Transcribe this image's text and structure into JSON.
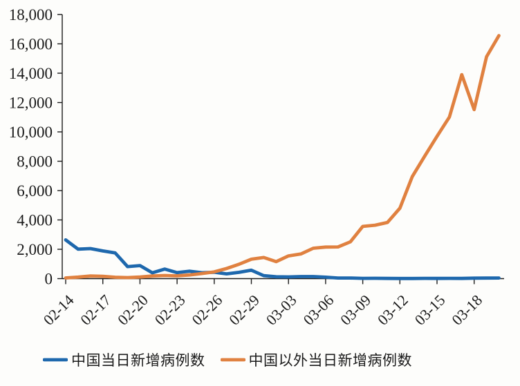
{
  "chart_data": {
    "type": "line",
    "title": "",
    "xlabel": "",
    "ylabel": "",
    "ylim": [
      0,
      18000
    ],
    "ytick_step": 2000,
    "grid": false,
    "legend_position": "bottom",
    "x": [
      "02-14",
      "02-15",
      "02-16",
      "02-17",
      "02-18",
      "02-19",
      "02-20",
      "02-21",
      "02-22",
      "02-23",
      "02-24",
      "02-25",
      "02-26",
      "02-27",
      "02-28",
      "02-29",
      "03-01",
      "03-02",
      "03-03",
      "03-04",
      "03-05",
      "03-06",
      "03-07",
      "03-08",
      "03-09",
      "03-10",
      "03-11",
      "03-12",
      "03-13",
      "03-14",
      "03-15",
      "03-16",
      "03-17",
      "03-18",
      "03-19",
      "03-20"
    ],
    "xtick_labels": [
      "02-14",
      "02-17",
      "02-20",
      "02-23",
      "02-26",
      "02-29",
      "03-03",
      "03-06",
      "03-09",
      "03-12",
      "03-15",
      "03-18"
    ],
    "xtick_every": 3,
    "ytick_labels": [
      "0",
      "2,000",
      "4,000",
      "6,000",
      "8,000",
      "10,000",
      "12,000",
      "14,000",
      "16,000",
      "18,000"
    ],
    "series": [
      {
        "name": "中国当日新增病例数",
        "color": "#1e68ad",
        "values": [
          2641,
          2009,
          2048,
          1886,
          1749,
          820,
          889,
          397,
          648,
          409,
          508,
          406,
          433,
          327,
          427,
          573,
          202,
          125,
          119,
          139,
          143,
          99,
          44,
          40,
          19,
          24,
          15,
          8,
          11,
          20,
          16,
          21,
          13,
          34,
          39,
          41
        ]
      },
      {
        "name": "中国以外当日新增病例数",
        "color": "#e08140",
        "values": [
          45,
          105,
          180,
          160,
          95,
          70,
          110,
          180,
          210,
          190,
          250,
          350,
          460,
          690,
          980,
          1320,
          1440,
          1160,
          1550,
          1680,
          2070,
          2150,
          2160,
          2510,
          3560,
          3640,
          3830,
          4800,
          6950,
          8340,
          9700,
          11010,
          13900,
          11520,
          15120,
          16560
        ]
      }
    ]
  },
  "axes": {
    "color": "#1a1a1a"
  }
}
